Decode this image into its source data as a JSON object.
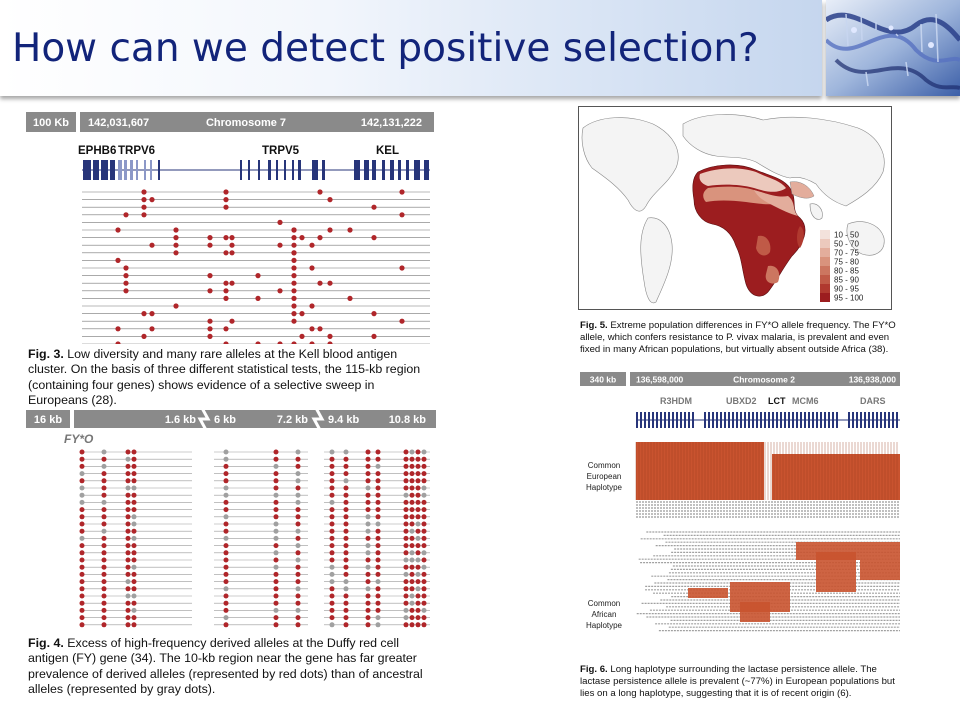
{
  "slide": {
    "title": "How can we detect positive selection?"
  },
  "fig3": {
    "scale_label": "100 Kb",
    "coord_start": "142,031,607",
    "chromosome": "Chromosome 7",
    "coord_end": "142,131,222",
    "genes": [
      "EPHB6",
      "TRPV6",
      "TRPV5",
      "KEL"
    ],
    "caption_label": "Fig. 3.",
    "caption_text": "Low diversity and many rare alleles at the Kell blood antigen cluster. On the basis of three different statistical tests, the 115-kb region (containing four genes) shows evidence of a selective sweep in Europeans (28)."
  },
  "fig4": {
    "scale_label": "16 kb",
    "segments": [
      "1.6 kb",
      "6 kb",
      "7.2 kb",
      "9.4 kb",
      "10.8 kb"
    ],
    "allele_label": "FY*O",
    "caption_label": "Fig. 4.",
    "caption_text": "Excess of high-frequency derived alleles at the Duffy red cell antigen (FY) gene (34). The 10-kb region near the gene has far greater prevalence of derived alleles (represented by red dots) than of ancestral alleles (represented by gray dots)."
  },
  "fig5": {
    "legend": [
      "10 - 50",
      "50 - 70",
      "70 - 75",
      "75 - 80",
      "80 - 85",
      "85 - 90",
      "90 - 95",
      "95 - 100"
    ],
    "legend_colors": [
      "#f3e2dc",
      "#ecc9bd",
      "#e3ad9c",
      "#d9937d",
      "#cc7660",
      "#c05a47",
      "#b0392f",
      "#9c1d1f"
    ],
    "caption_label": "Fig. 5.",
    "caption_text": "Extreme population differences in FY*O allele frequency. The FY*O allele, which confers resistance to P. vivax malaria, is prevalent and even fixed in many African populations, but virtually absent outside Africa (38)."
  },
  "fig6": {
    "scale_label": "340 kb",
    "coord_start": "136,598,000",
    "chromosome": "Chromosome 2",
    "coord_end": "136,938,000",
    "genes": [
      "R3HDM",
      "UBXD2",
      "LCT",
      "MCM6",
      "DARS"
    ],
    "european_label": [
      "Common",
      "European",
      "Haplotype"
    ],
    "african_label": [
      "Common",
      "African",
      "Haplotype"
    ],
    "caption_label": "Fig. 6.",
    "caption_text": "Long haplotype surrounding the lactase persistence allele. The lactase persistence allele is prevalent (~77%) in European populations but lies on a long haplotype, suggesting that it is of recent origin (6)."
  }
}
